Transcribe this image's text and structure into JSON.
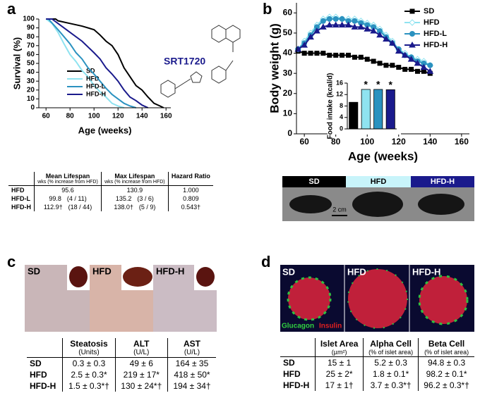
{
  "panel_labels": [
    "a",
    "b",
    "c",
    "d"
  ],
  "compound": "SRT1720",
  "chart_data": [
    {
      "type": "line",
      "x_label": "Age (weeks)",
      "y_label": "Survival (%)",
      "xlim": [
        54,
        164
      ],
      "xticks": [
        60,
        80,
        100,
        120,
        140,
        160
      ],
      "ylim": [
        0,
        100
      ],
      "yticks": [
        0,
        10,
        20,
        30,
        40,
        50,
        60,
        70,
        80,
        90,
        100
      ],
      "legend": "lower left",
      "series": [
        {
          "name": "SD",
          "color": "#000000",
          "x": [
            60,
            68,
            70,
            80,
            90,
            100,
            105,
            110,
            115,
            120,
            125,
            130,
            135,
            140,
            145,
            150,
            155,
            158
          ],
          "values": [
            100,
            100,
            98,
            95,
            92,
            88,
            82,
            75,
            70,
            60,
            45,
            35,
            25,
            20,
            12,
            5,
            2,
            0
          ]
        },
        {
          "name": "HFD",
          "color": "#8fe3f0",
          "x": [
            60,
            65,
            70,
            75,
            80,
            85,
            90,
            95,
            100,
            105,
            110,
            115,
            120,
            125
          ],
          "values": [
            100,
            95,
            85,
            72,
            60,
            52,
            42,
            35,
            25,
            18,
            12,
            5,
            2,
            0
          ]
        },
        {
          "name": "HFD-L",
          "color": "#2b92c0",
          "x": [
            60,
            62,
            70,
            75,
            80,
            85,
            90,
            95,
            100,
            105,
            110,
            115,
            120,
            125,
            130,
            135
          ],
          "values": [
            100,
            100,
            88,
            80,
            72,
            62,
            55,
            45,
            38,
            30,
            22,
            15,
            10,
            5,
            2,
            0
          ]
        },
        {
          "name": "HFD-H",
          "color": "#1a1a8c",
          "x": [
            60,
            65,
            70,
            80,
            90,
            100,
            105,
            110,
            115,
            120,
            125,
            130,
            135,
            140,
            145
          ],
          "values": [
            100,
            100,
            95,
            85,
            75,
            62,
            55,
            45,
            38,
            30,
            20,
            12,
            8,
            3,
            0
          ]
        }
      ]
    },
    {
      "type": "line",
      "x_label": "Age (weeks)",
      "y_label": "Body weight (g)",
      "xlim": [
        55,
        165
      ],
      "xticks": [
        60,
        80,
        100,
        120,
        140,
        160
      ],
      "ylim": [
        0,
        65
      ],
      "yticks": [
        0,
        10,
        20,
        30,
        40,
        50,
        60
      ],
      "legend": "upper right",
      "x": [
        56,
        60,
        64,
        68,
        72,
        76,
        80,
        84,
        88,
        92,
        96,
        100,
        104,
        108,
        112,
        116,
        120,
        124,
        128,
        132,
        136,
        140
      ],
      "series": [
        {
          "name": "SD",
          "color": "#000000",
          "marker": "square",
          "values": [
            41,
            40,
            40,
            40,
            40,
            39,
            39,
            39,
            39,
            38,
            38,
            37,
            36,
            35,
            34,
            34,
            33,
            32,
            32,
            31,
            31,
            30
          ]
        },
        {
          "name": "HFD",
          "color": "#8fe3f0",
          "marker": "diamond",
          "values": [
            42,
            46,
            50,
            54,
            57,
            58,
            58,
            57,
            57,
            57,
            56,
            55,
            54,
            52,
            49,
            46,
            42,
            40,
            38,
            37,
            36,
            34
          ]
        },
        {
          "name": "HFD-L",
          "color": "#2b92c0",
          "marker": "circle",
          "values": [
            42,
            45,
            49,
            53,
            56,
            57,
            57,
            57,
            56,
            56,
            55,
            54,
            53,
            51,
            48,
            45,
            42,
            39,
            38,
            36,
            35,
            34
          ]
        },
        {
          "name": "HFD-H",
          "color": "#1a1a8c",
          "marker": "triangle",
          "values": [
            42,
            44,
            48,
            51,
            53,
            54,
            54,
            54,
            54,
            53,
            53,
            52,
            51,
            49,
            47,
            45,
            41,
            39,
            37,
            35,
            33,
            31
          ]
        }
      ]
    },
    {
      "type": "bar",
      "y_label": "Food intake (kcal/d)",
      "ylim": [
        0,
        16
      ],
      "yticks": [
        0,
        4,
        8,
        12,
        16
      ],
      "values": [
        9.3,
        13.8,
        13.8,
        13.7
      ],
      "colors": [
        "#000000",
        "#8fe3f0",
        "#2b92c0",
        "#1a1a8c"
      ],
      "significance": [
        null,
        "*",
        "*",
        "*"
      ]
    }
  ],
  "mouse_labels": [
    "SD",
    "HFD",
    "HFD-H"
  ],
  "scale_bar": "2 cm",
  "histology_labels": [
    "SD",
    "HFD",
    "HFD-H"
  ],
  "islet_labels": [
    "SD",
    "HFD",
    "HFD-H"
  ],
  "stain_labels": [
    "Glucagon",
    "Insulin"
  ],
  "tables": [
    {
      "headers": [
        {
          "title": "Mean Lifespan",
          "sub": "wks (% increase from HFD)"
        },
        {
          "title": "Max Lifespan",
          "sub": "wks (% increase from HFD)"
        },
        {
          "title": "Hazard Ratio"
        }
      ],
      "rows": [
        {
          "label": "HFD",
          "cells": [
            [
              "95.6"
            ],
            [
              "130.9"
            ],
            [
              "1.000"
            ]
          ]
        },
        {
          "label": "HFD-L",
          "cells": [
            [
              "99.8",
              "(4 / 11)"
            ],
            [
              "135.2",
              "(3 / 6)"
            ],
            [
              "0.809"
            ]
          ]
        },
        {
          "label": "HFD-H",
          "cells": [
            [
              "112.9†",
              "(18 / 44)"
            ],
            [
              "138.0†",
              "(5 / 9)"
            ],
            [
              "0.543†"
            ]
          ]
        }
      ]
    },
    {
      "headers": [
        {
          "title": "Steatosis",
          "sub": "(Units)"
        },
        {
          "title": "ALT",
          "sub": "(U/L)"
        },
        {
          "title": "AST",
          "sub": "(U/L)"
        }
      ],
      "rows": [
        {
          "label": "SD",
          "cells": [
            [
              "0.3 ± 0.3"
            ],
            [
              "49 ± 6"
            ],
            [
              "164 ± 35"
            ]
          ]
        },
        {
          "label": "HFD",
          "cells": [
            [
              "2.5 ± 0.3*"
            ],
            [
              "219 ± 17*"
            ],
            [
              "418 ± 50*"
            ]
          ]
        },
        {
          "label": "HFD-H",
          "cells": [
            [
              "1.5 ± 0.3*†"
            ],
            [
              "130 ± 24*†"
            ],
            [
              "194 ± 34†"
            ]
          ]
        }
      ]
    },
    {
      "headers": [
        {
          "title": "Islet Area",
          "sub": "(µm²)"
        },
        {
          "title": "Alpha Cell",
          "sub": "(% of islet area)"
        },
        {
          "title": "Beta Cell",
          "sub": "(% of islet area)"
        }
      ],
      "rows": [
        {
          "label": "SD",
          "cells": [
            [
              "15 ± 1"
            ],
            [
              "5.2 ± 0.3"
            ],
            [
              "94.8 ± 0.3"
            ]
          ]
        },
        {
          "label": "HFD",
          "cells": [
            [
              "25 ± 2*"
            ],
            [
              "1.8 ± 0.1*"
            ],
            [
              "98.2 ± 0.1*"
            ]
          ]
        },
        {
          "label": "HFD-H",
          "cells": [
            [
              "17 ± 1†"
            ],
            [
              "3.7 ± 0.3*†"
            ],
            [
              "96.2 ± 0.3*†"
            ]
          ]
        }
      ]
    }
  ]
}
